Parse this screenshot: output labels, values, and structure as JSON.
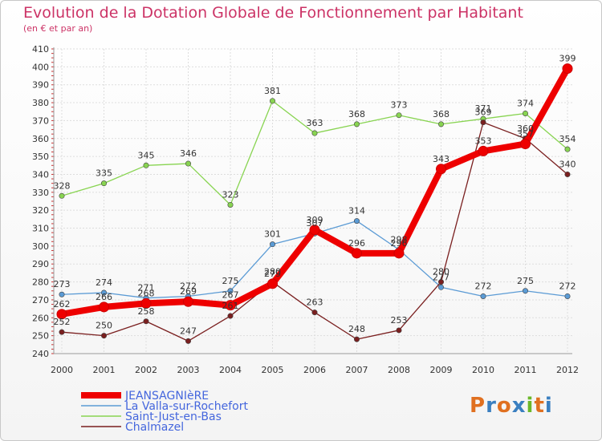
{
  "title": "Evolution de la Dotation Globale de Fonctionnement par Habitant",
  "subtitle": "(en € et par an)",
  "logo": {
    "text": "Proxiti",
    "colors": [
      "#e07020",
      "#3a7fc0",
      "#e07020",
      "#3a7fc0",
      "#6bb82a",
      "#e07020",
      "#3a7fc0"
    ]
  },
  "colors": {
    "title": "#cc3366",
    "grid": "#dddddd",
    "axis": "#999999",
    "tick_mark": "#cc3333"
  },
  "chart_data": {
    "type": "line",
    "title": "Evolution de la Dotation Globale de Fonctionnement par Habitant",
    "subtitle": "(en € et par an)",
    "xlabel": "",
    "ylabel": "",
    "x": [
      2000,
      2001,
      2002,
      2003,
      2004,
      2005,
      2006,
      2007,
      2008,
      2009,
      2010,
      2011,
      2012
    ],
    "ylim": [
      240,
      410
    ],
    "yticks": [
      240,
      250,
      260,
      270,
      280,
      290,
      300,
      310,
      320,
      330,
      340,
      350,
      360,
      370,
      380,
      390,
      400,
      410
    ],
    "grid": true,
    "legend_position": "bottom-left",
    "series": [
      {
        "name": "JEANSAGNIèRE",
        "color": "#ee0000",
        "emphasis": "thick",
        "values": [
          262,
          266,
          268,
          269,
          267,
          279,
          309,
          296,
          296,
          343,
          353,
          357,
          399
        ],
        "labels": [
          "262",
          "266",
          "268",
          "269",
          "267",
          "279",
          "309",
          "296",
          "296",
          "343",
          "353",
          "357",
          "399"
        ]
      },
      {
        "name": "La Valla-sur-Rochefort",
        "color": "#5b9bd5",
        "values": [
          273,
          274,
          271,
          272,
          275,
          301,
          307,
          314,
          298,
          277,
          272,
          275,
          272
        ],
        "labels": [
          "273",
          "274",
          "271",
          "272",
          "275",
          "301",
          "307",
          "314",
          "298",
          "277",
          "272",
          "275",
          "272"
        ]
      },
      {
        "name": "Saint-Just-en-Bas",
        "color": "#88d451",
        "values": [
          328,
          335,
          345,
          346,
          323,
          381,
          363,
          368,
          373,
          368,
          371,
          374,
          354
        ],
        "labels": [
          "328",
          "335",
          "345",
          "346",
          "323",
          "381",
          "363",
          "368",
          "373",
          "368",
          "371",
          "374",
          "354"
        ]
      },
      {
        "name": "Chalmazel",
        "color": "#7a1f1f",
        "values": [
          252,
          250,
          258,
          247,
          261,
          280,
          263,
          248,
          253,
          280,
          369,
          360,
          340
        ],
        "labels": [
          "252",
          "250",
          "258",
          "247",
          "261",
          "280",
          "263",
          "248",
          "253",
          "280",
          "369",
          "360",
          "340"
        ]
      }
    ]
  }
}
